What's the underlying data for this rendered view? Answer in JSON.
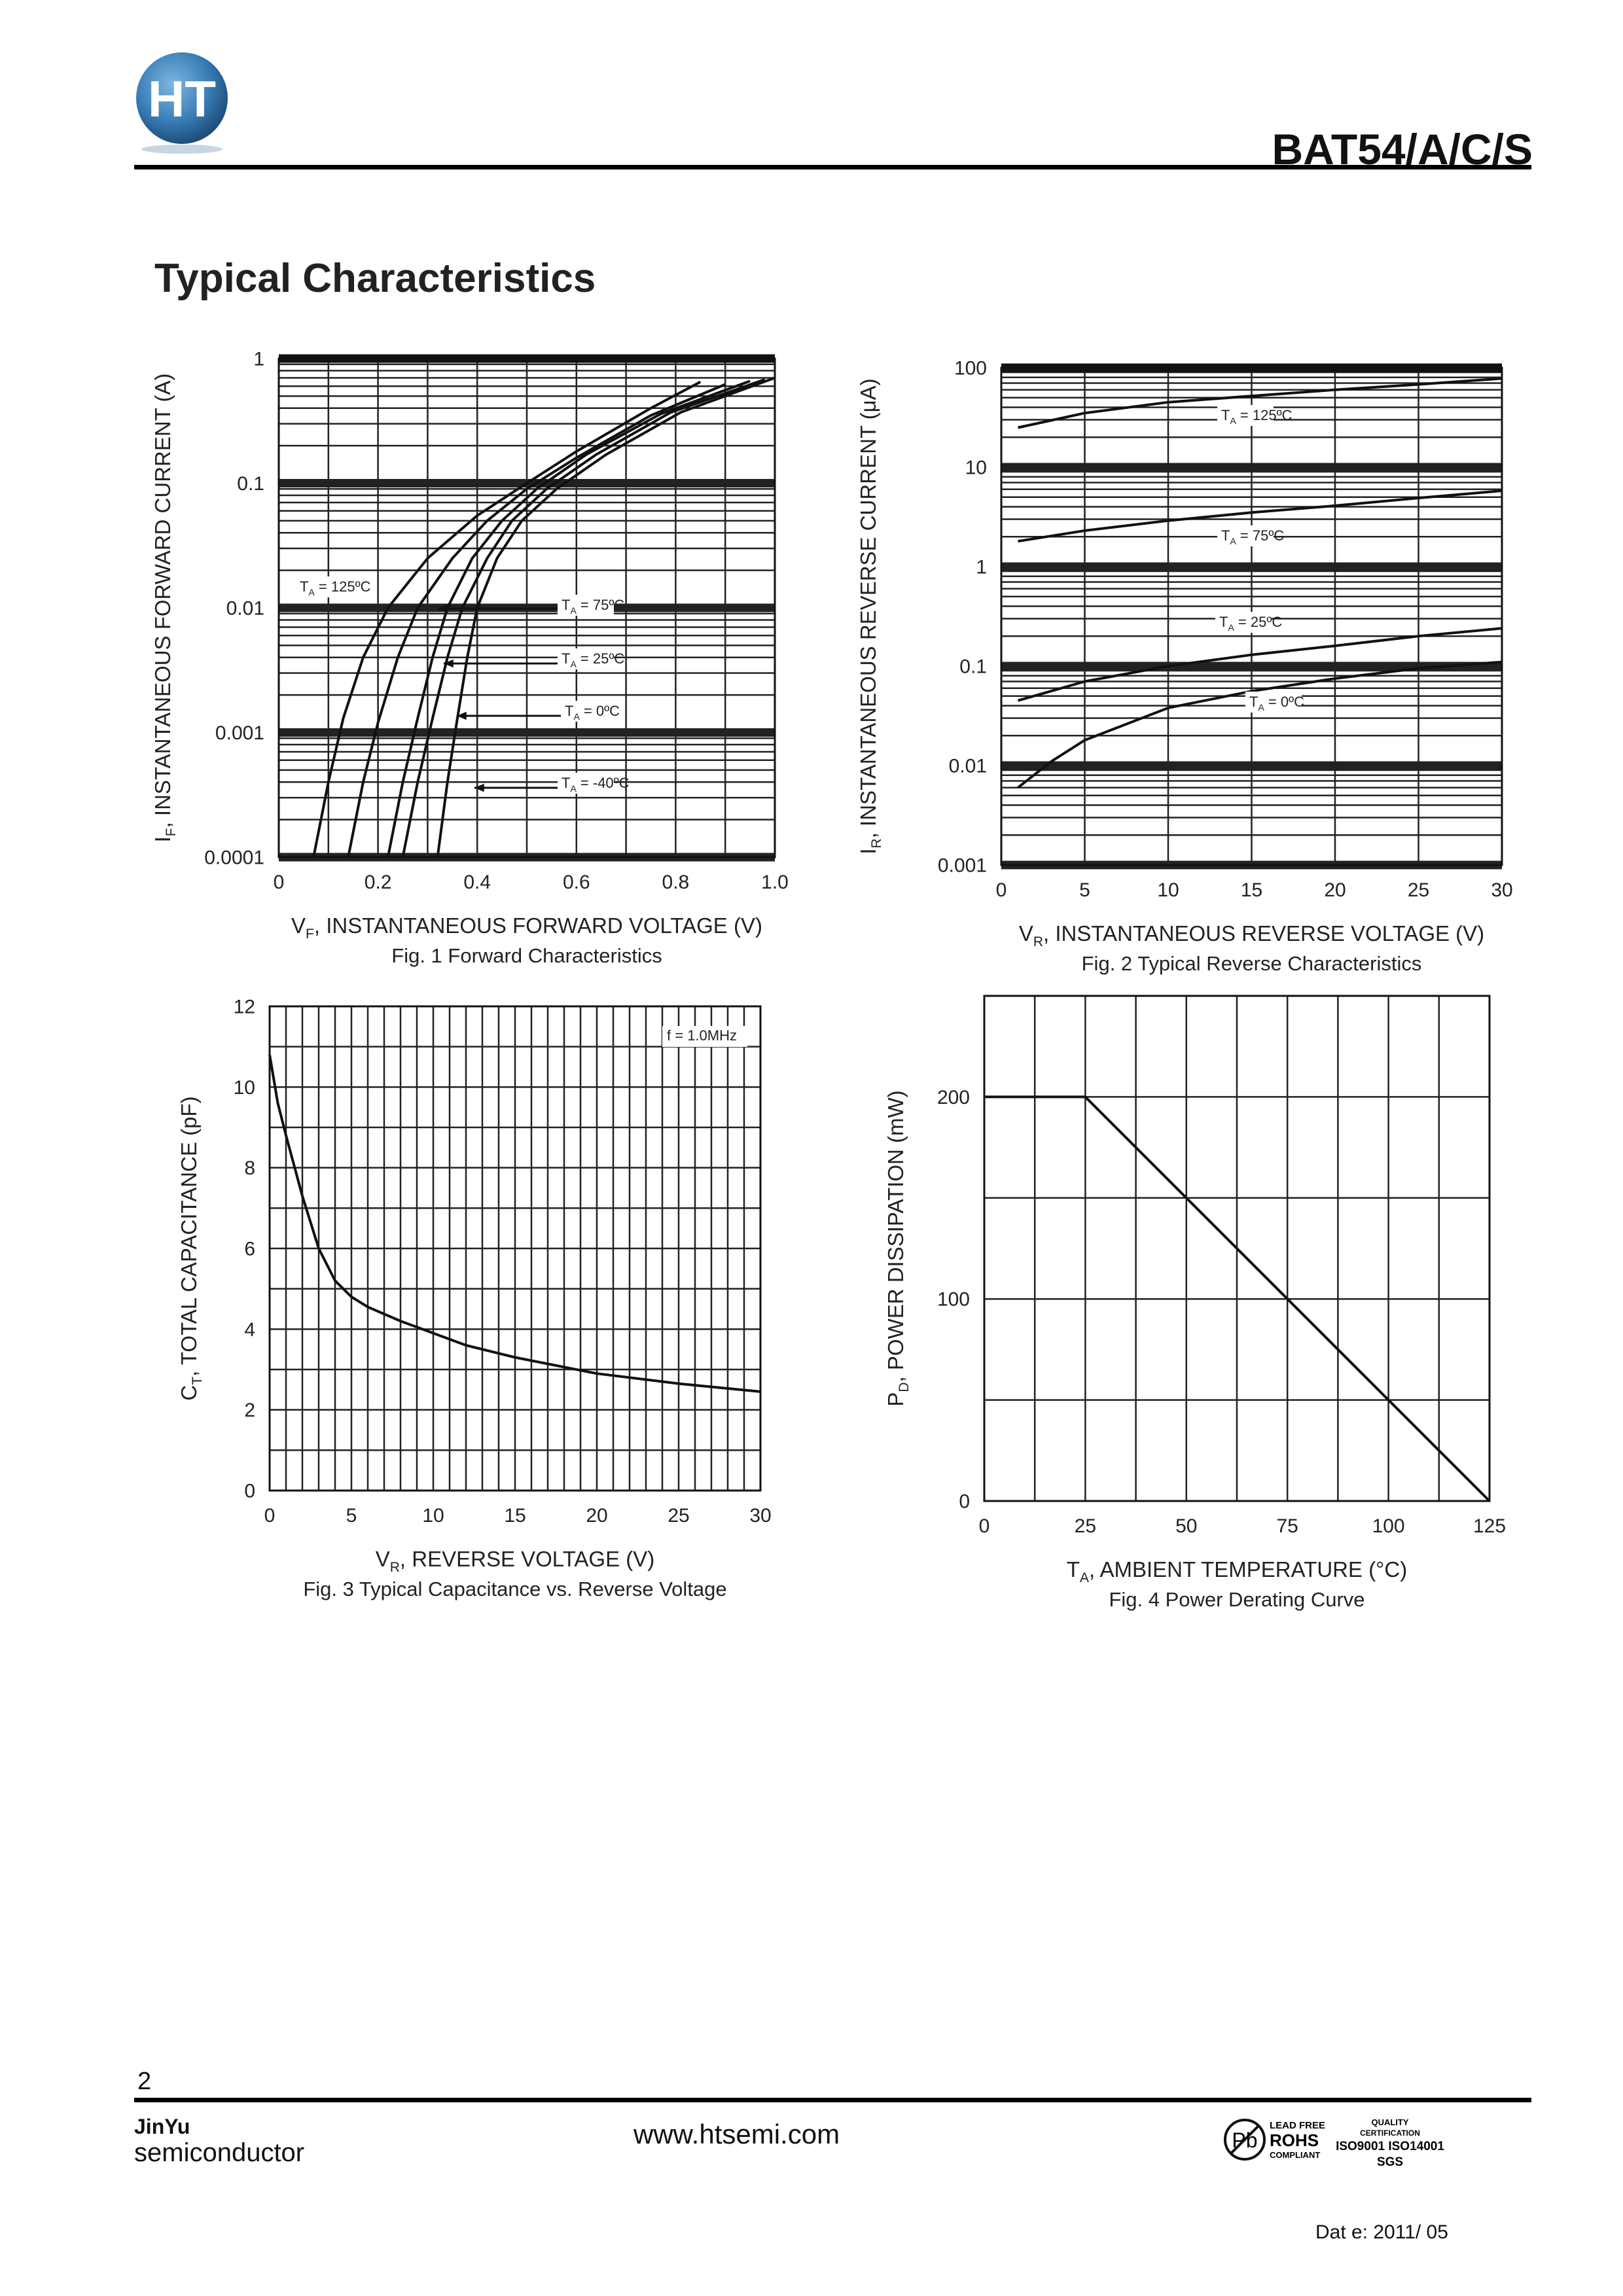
{
  "header": {
    "part_number": "BAT54/A/C/S",
    "logo_text": "HT",
    "section_title": "Typical Characteristics"
  },
  "colors": {
    "ink": "#111111",
    "grid": "#222222",
    "logo_blue": "#3a7fb8",
    "logo_dark": "#1e4f7d"
  },
  "chart_data": [
    {
      "id": "fig1",
      "type": "line",
      "caption": "Fig. 1  Forward Characteristics",
      "xlabel": "VF, INSTANTANEOUS FORWARD VOLTAGE (V)",
      "xlabel_main": "V",
      "xlabel_sub": "F",
      "xlabel_rest": ", INSTANTANEOUS FORWARD VOLTAGE (V)",
      "ylabel": "IF, INSTANTANEOUS FORWARD CURRENT (A)",
      "ylabel_main": "I",
      "ylabel_sub": "F",
      "ylabel_rest": ", INSTANTANEOUS FORWARD CURRENT (A)",
      "xscale": "linear",
      "yscale": "log",
      "xlim": [
        0,
        1.0
      ],
      "ylim": [
        0.0001,
        1
      ],
      "xticks": [
        "0",
        "0.2",
        "0.4",
        "0.6",
        "0.8",
        "1.0"
      ],
      "yticks": [
        "0.0001",
        "0.001",
        "0.01",
        "0.1",
        "1"
      ],
      "series": [
        {
          "name": "TA = 125ºC",
          "label_main": "T",
          "label_sub": "A",
          "label_rest": " = 125ºC",
          "x": [
            0.07,
            0.1,
            0.13,
            0.17,
            0.22,
            0.3,
            0.4,
            0.5,
            0.6,
            0.75,
            0.85
          ],
          "y": [
            0.0001,
            0.0004,
            0.0013,
            0.004,
            0.01,
            0.025,
            0.055,
            0.1,
            0.18,
            0.4,
            0.65
          ]
        },
        {
          "name": "TA = 75ºC",
          "label_main": "T",
          "label_sub": "A",
          "label_rest": " = 75ºC",
          "x": [
            0.14,
            0.17,
            0.2,
            0.24,
            0.28,
            0.35,
            0.42,
            0.5,
            0.6,
            0.75,
            0.9
          ],
          "y": [
            0.0001,
            0.0004,
            0.0012,
            0.004,
            0.01,
            0.025,
            0.05,
            0.09,
            0.16,
            0.35,
            0.62
          ]
        },
        {
          "name": "TA = 25ºC",
          "label_main": "T",
          "label_sub": "A",
          "label_rest": " = 25ºC",
          "x": [
            0.22,
            0.25,
            0.28,
            0.31,
            0.34,
            0.39,
            0.45,
            0.52,
            0.62,
            0.77,
            0.95
          ],
          "y": [
            0.0001,
            0.0004,
            0.0013,
            0.004,
            0.01,
            0.025,
            0.05,
            0.09,
            0.17,
            0.36,
            0.66
          ]
        },
        {
          "name": "TA = 0ºC",
          "label_main": "T",
          "label_sub": "A",
          "label_rest": " = 0ºC",
          "x": [
            0.25,
            0.28,
            0.31,
            0.34,
            0.37,
            0.42,
            0.47,
            0.54,
            0.64,
            0.79,
            0.98
          ],
          "y": [
            0.0001,
            0.0004,
            0.0013,
            0.004,
            0.01,
            0.025,
            0.05,
            0.09,
            0.17,
            0.37,
            0.68
          ]
        },
        {
          "name": "TA = -40ºC",
          "label_main": "T",
          "label_sub": "A",
          "label_rest": " = -40ºC",
          "x": [
            0.32,
            0.34,
            0.36,
            0.38,
            0.4,
            0.44,
            0.49,
            0.56,
            0.66,
            0.81,
            1.0
          ],
          "y": [
            0.0001,
            0.0004,
            0.0013,
            0.004,
            0.01,
            0.025,
            0.05,
            0.09,
            0.17,
            0.37,
            0.7
          ]
        }
      ]
    },
    {
      "id": "fig2",
      "type": "line",
      "caption": "Fig. 2  Typical Reverse Characteristics",
      "xlabel": "VR, INSTANTANEOUS REVERSE VOLTAGE (V)",
      "xlabel_main": "V",
      "xlabel_sub": "R",
      "xlabel_rest": ", INSTANTANEOUS REVERSE VOLTAGE (V)",
      "ylabel": "IR, INSTANTANEOUS REVERSE CURRENT (μA)",
      "ylabel_main": "I",
      "ylabel_sub": "R",
      "ylabel_rest": ", INSTANTANEOUS REVERSE CURRENT (μA)",
      "xscale": "linear",
      "yscale": "log",
      "xlim": [
        0,
        30
      ],
      "ylim": [
        0.001,
        100
      ],
      "xticks": [
        "0",
        "5",
        "10",
        "15",
        "20",
        "25",
        "30"
      ],
      "yticks": [
        "0.001",
        "0.01",
        "0.1",
        "1",
        "10",
        "100"
      ],
      "series": [
        {
          "name": "TA = 125ºC",
          "label_main": "T",
          "label_sub": "A",
          "label_rest": " = 125ºC",
          "x": [
            1,
            5,
            10,
            15,
            20,
            25,
            30
          ],
          "y": [
            25,
            35,
            45,
            52,
            60,
            68,
            78
          ]
        },
        {
          "name": "TA = 75ºC",
          "label_main": "T",
          "label_sub": "A",
          "label_rest": " = 75ºC",
          "x": [
            1,
            5,
            10,
            15,
            20,
            25,
            30
          ],
          "y": [
            1.8,
            2.3,
            2.9,
            3.5,
            4.1,
            4.9,
            5.8
          ]
        },
        {
          "name": "TA = 25ºC",
          "label_main": "T",
          "label_sub": "A",
          "label_rest": " = 25ºC",
          "x": [
            1,
            5,
            10,
            15,
            20,
            25,
            30
          ],
          "y": [
            0.045,
            0.07,
            0.1,
            0.13,
            0.16,
            0.2,
            0.24
          ]
        },
        {
          "name": "TA = 0ºC",
          "label_main": "T",
          "label_sub": "A",
          "label_rest": " = 0ºC",
          "x": [
            1,
            3,
            5,
            10,
            15,
            20,
            25,
            30
          ],
          "y": [
            0.006,
            0.011,
            0.018,
            0.038,
            0.056,
            0.075,
            0.095,
            0.11
          ]
        }
      ]
    },
    {
      "id": "fig3",
      "type": "line",
      "caption": "Fig. 3  Typical Capacitance vs. Reverse Voltage",
      "xlabel": "VR, REVERSE VOLTAGE (V)",
      "xlabel_main": "V",
      "xlabel_sub": "R",
      "xlabel_rest": ", REVERSE VOLTAGE (V)",
      "ylabel": "CT, TOTAL CAPACITANCE (pF)",
      "ylabel_main": "C",
      "ylabel_sub": "T",
      "ylabel_rest": ", TOTAL CAPACITANCE (pF)",
      "annotation": "f = 1.0MHz",
      "xscale": "linear",
      "yscale": "linear",
      "xlim": [
        0,
        30
      ],
      "ylim": [
        0,
        12
      ],
      "xticks": [
        "0",
        "5",
        "10",
        "15",
        "20",
        "25",
        "30"
      ],
      "yticks": [
        "0",
        "2",
        "4",
        "6",
        "8",
        "10",
        "12"
      ],
      "series": [
        {
          "name": "CT",
          "x": [
            0,
            0.5,
            1,
            2,
            3,
            4,
            5,
            6,
            8,
            10,
            12,
            15,
            20,
            25,
            30
          ],
          "y": [
            10.8,
            9.6,
            8.8,
            7.3,
            6.0,
            5.2,
            4.8,
            4.55,
            4.2,
            3.9,
            3.6,
            3.3,
            2.9,
            2.65,
            2.45
          ]
        }
      ]
    },
    {
      "id": "fig4",
      "type": "line",
      "caption": "Fig. 4  Power Derating Curve",
      "xlabel": "TA, AMBIENT TEMPERATURE (°C)",
      "xlabel_main": "T",
      "xlabel_sub": "A",
      "xlabel_rest": ",  AMBIENT TEMPERATURE (°C)",
      "ylabel": "PD, POWER DISSIPATION (mW)",
      "ylabel_main": "P",
      "ylabel_sub": "D",
      "ylabel_rest": ", POWER DISSIPATION (mW)",
      "xscale": "linear",
      "yscale": "linear",
      "xlim": [
        0,
        125
      ],
      "ylim": [
        0,
        250
      ],
      "xticks": [
        "0",
        "25",
        "50",
        "75",
        "100",
        "125"
      ],
      "yticks": [
        "0",
        "100",
        "200"
      ],
      "series": [
        {
          "name": "PD",
          "x": [
            0,
            25,
            125
          ],
          "y": [
            200,
            200,
            0
          ]
        }
      ]
    }
  ],
  "footer": {
    "page_number": "2",
    "brand_name": "JinYu",
    "brand_sub": "semiconductor",
    "website": "www.htsemi.com",
    "cert_pb": "Pb",
    "cert_lead_free": "LEAD FREE",
    "cert_rohs": "ROHS",
    "cert_compliant": "COMPLIANT",
    "cert_quality": "QUALITY",
    "cert_certification": "CERTIFICATION",
    "cert_iso": "ISO9001 ISO14001",
    "cert_sgs": "SGS",
    "date": "Dat e: 2011/ 05"
  }
}
